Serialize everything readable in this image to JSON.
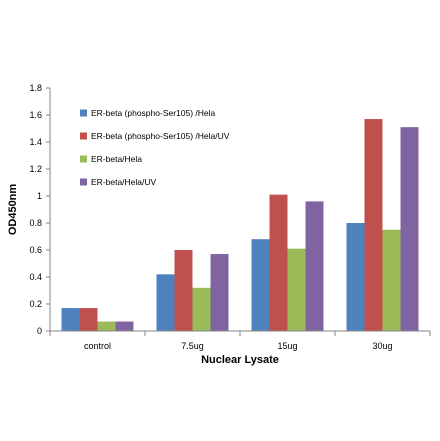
{
  "chart_data": {
    "type": "bar",
    "title": "",
    "xlabel": "Nuclear Lysate",
    "ylabel": "OD450nm",
    "categories": [
      "control",
      "7.5ug",
      "15ug",
      "30ug"
    ],
    "ylim": [
      0,
      1.8
    ],
    "yticks": [
      "0",
      "0.2",
      "0.4",
      "0.6",
      "0.8",
      "1",
      "1.2",
      "1.4",
      "1.6",
      "1.8"
    ],
    "grid": false,
    "legend_position": "top-left",
    "series": [
      {
        "name": "ER-beta (phospho-Ser105) /Hela",
        "color": "#4F81BD",
        "values": [
          0.17,
          0.42,
          0.68,
          0.8
        ]
      },
      {
        "name": "ER-beta (phospho-Ser105) /Hela/UV",
        "color": "#C0504D",
        "values": [
          0.17,
          0.6,
          1.01,
          1.57
        ]
      },
      {
        "name": "ER-beta/Hela",
        "color": "#9BBB59",
        "values": [
          0.07,
          0.32,
          0.61,
          0.75
        ]
      },
      {
        "name": "ER-beta/Hela/UV",
        "color": "#8064A2",
        "values": [
          0.07,
          0.57,
          0.96,
          1.51
        ]
      }
    ]
  }
}
